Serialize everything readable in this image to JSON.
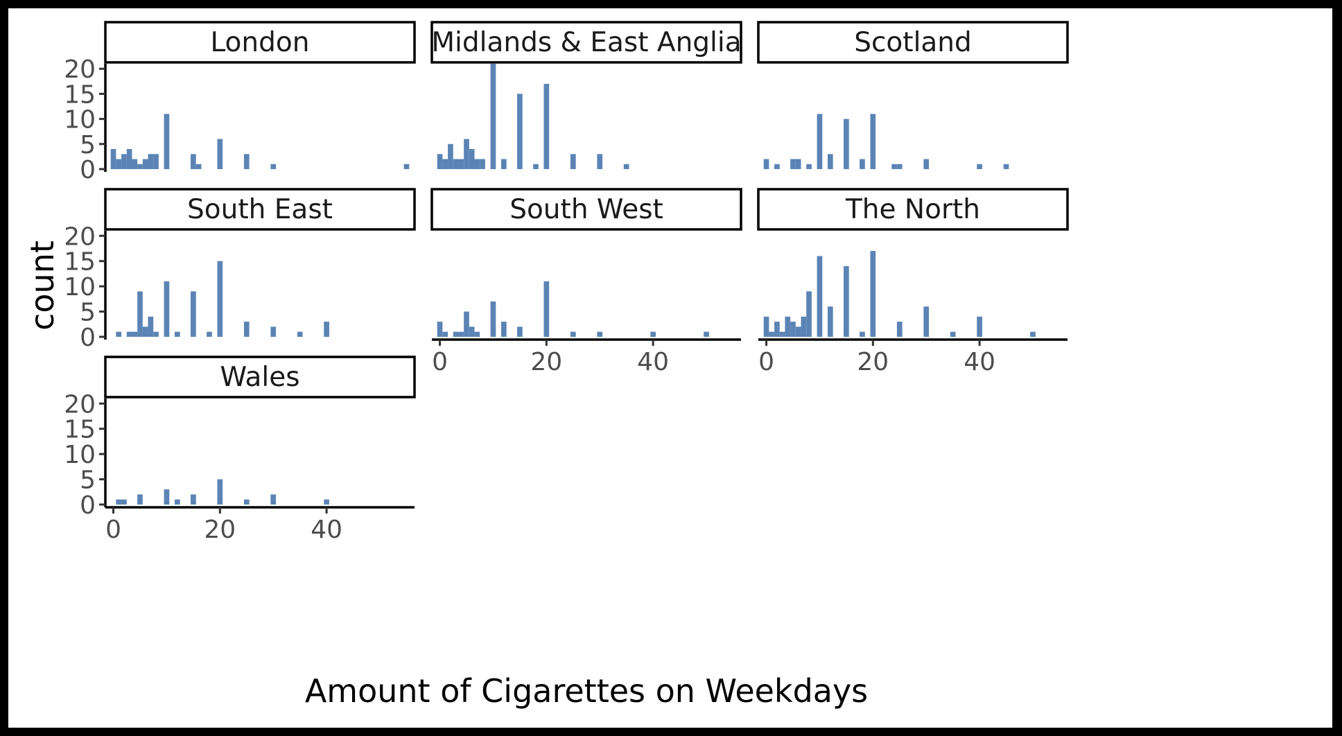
{
  "chart_data": {
    "type": "bar",
    "xlabel": "Amount of Cigarettes on Weekdays",
    "ylabel": "count",
    "xlim": [
      -1.5,
      56.5
    ],
    "ylim": [
      0,
      21
    ],
    "x_ticks": [
      0,
      20,
      40
    ],
    "y_ticks": [
      0,
      5,
      10,
      15,
      20
    ],
    "bar_color": "#5b84b5",
    "panels": [
      {
        "label": "London",
        "bars": [
          [
            0,
            4
          ],
          [
            1,
            2
          ],
          [
            2,
            3
          ],
          [
            3,
            4
          ],
          [
            4,
            2
          ],
          [
            5,
            1
          ],
          [
            6,
            2
          ],
          [
            7,
            3
          ],
          [
            8,
            3
          ],
          [
            10,
            11
          ],
          [
            15,
            3
          ],
          [
            16,
            1
          ],
          [
            20,
            6
          ],
          [
            25,
            3
          ],
          [
            30,
            1
          ],
          [
            55,
            1
          ]
        ]
      },
      {
        "label": "Midlands & East Anglia",
        "bars": [
          [
            0,
            3
          ],
          [
            1,
            2
          ],
          [
            2,
            5
          ],
          [
            3,
            2
          ],
          [
            4,
            2
          ],
          [
            5,
            6
          ],
          [
            6,
            4
          ],
          [
            7,
            2
          ],
          [
            8,
            2
          ],
          [
            10,
            21
          ],
          [
            12,
            2
          ],
          [
            15,
            15
          ],
          [
            18,
            1
          ],
          [
            20,
            17
          ],
          [
            25,
            3
          ],
          [
            30,
            3
          ],
          [
            35,
            1
          ]
        ]
      },
      {
        "label": "Scotland",
        "bars": [
          [
            0,
            2
          ],
          [
            2,
            1
          ],
          [
            5,
            2
          ],
          [
            6,
            2
          ],
          [
            8,
            1
          ],
          [
            10,
            11
          ],
          [
            12,
            3
          ],
          [
            15,
            10
          ],
          [
            18,
            2
          ],
          [
            20,
            11
          ],
          [
            24,
            1
          ],
          [
            25,
            1
          ],
          [
            30,
            2
          ],
          [
            40,
            1
          ],
          [
            45,
            1
          ]
        ]
      },
      {
        "label": "South East",
        "bars": [
          [
            1,
            1
          ],
          [
            3,
            1
          ],
          [
            4,
            1
          ],
          [
            5,
            9
          ],
          [
            6,
            2
          ],
          [
            7,
            4
          ],
          [
            8,
            1
          ],
          [
            10,
            11
          ],
          [
            12,
            1
          ],
          [
            15,
            9
          ],
          [
            18,
            1
          ],
          [
            20,
            15
          ],
          [
            25,
            3
          ],
          [
            30,
            2
          ],
          [
            35,
            1
          ],
          [
            40,
            3
          ]
        ]
      },
      {
        "label": "South West",
        "bars": [
          [
            0,
            3
          ],
          [
            1,
            1
          ],
          [
            3,
            1
          ],
          [
            4,
            1
          ],
          [
            5,
            5
          ],
          [
            6,
            2
          ],
          [
            7,
            1
          ],
          [
            10,
            7
          ],
          [
            12,
            3
          ],
          [
            15,
            2
          ],
          [
            20,
            11
          ],
          [
            25,
            1
          ],
          [
            30,
            1
          ],
          [
            40,
            1
          ],
          [
            50,
            1
          ]
        ]
      },
      {
        "label": "The North",
        "bars": [
          [
            0,
            4
          ],
          [
            1,
            1
          ],
          [
            2,
            3
          ],
          [
            3,
            1
          ],
          [
            4,
            4
          ],
          [
            5,
            3
          ],
          [
            6,
            2
          ],
          [
            7,
            4
          ],
          [
            8,
            9
          ],
          [
            10,
            16
          ],
          [
            12,
            6
          ],
          [
            15,
            14
          ],
          [
            18,
            1
          ],
          [
            20,
            17
          ],
          [
            25,
            3
          ],
          [
            30,
            6
          ],
          [
            35,
            1
          ],
          [
            40,
            4
          ],
          [
            50,
            1
          ]
        ]
      },
      {
        "label": "Wales",
        "bars": [
          [
            1,
            1
          ],
          [
            2,
            1
          ],
          [
            5,
            2
          ],
          [
            10,
            3
          ],
          [
            12,
            1
          ],
          [
            15,
            2
          ],
          [
            20,
            5
          ],
          [
            25,
            1
          ],
          [
            30,
            2
          ],
          [
            40,
            1
          ]
        ]
      }
    ]
  }
}
